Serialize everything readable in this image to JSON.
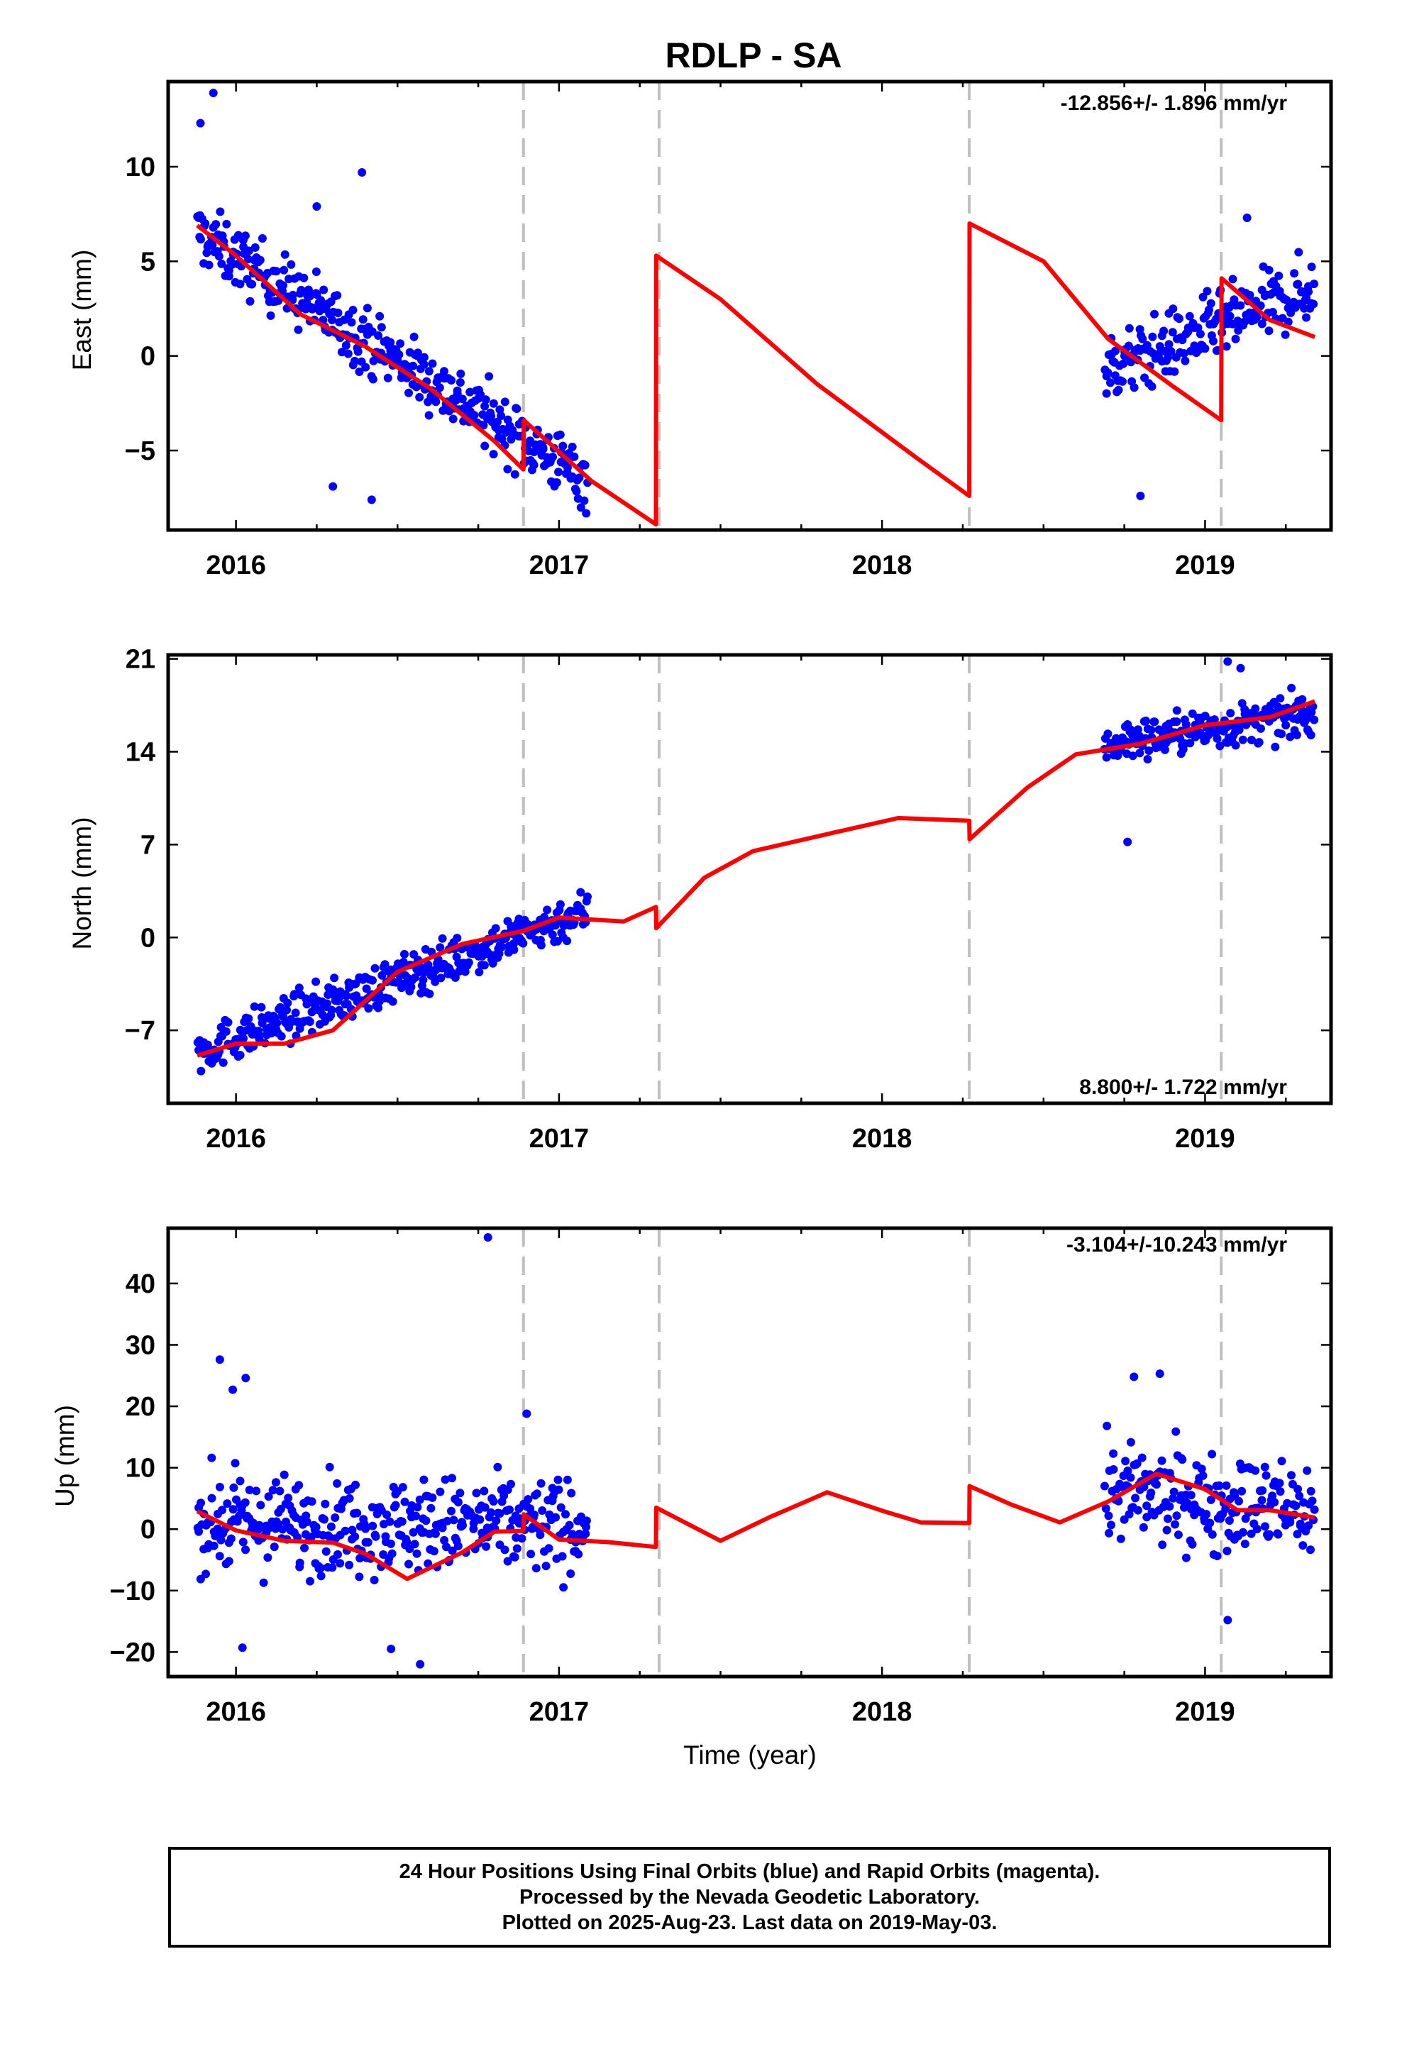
{
  "title": "RDLP - SA",
  "x_axis_title": "Time (year)",
  "footer": {
    "line1": "24 Hour Positions Using Final Orbits (blue) and Rapid Orbits (magenta).",
    "line2": "Processed by the Nevada Geodetic Laboratory.",
    "line3": "Plotted on 2025-Aug-23. Last data on 2019-May-03."
  },
  "colors": {
    "points": "#0000ff",
    "model": "#ff0000",
    "event_lines": "#bfbfbf"
  },
  "chart_data": [
    {
      "type": "scatter",
      "name": "east",
      "ylabel": "East (mm)",
      "rate_label": "-12.856+/- 1.896 mm/yr",
      "xlim": [
        2015.79,
        2019.39
      ],
      "ylim": [
        -9.2,
        14.5
      ],
      "yticks": [
        -5,
        0,
        5,
        10
      ],
      "xticks": [
        2016,
        2017,
        2018,
        2019
      ],
      "xtick_labels": [
        "2016",
        "2017",
        "2018",
        "2019"
      ],
      "event_lines": [
        2016.89,
        2017.31,
        2018.27,
        2019.05
      ],
      "data_ranges": [
        {
          "start": 2015.88,
          "end": 2017.09,
          "mean_start": 6.5,
          "mean_end": -6.6,
          "spread": 1.4
        },
        {
          "start": 2018.69,
          "end": 2019.34,
          "mean_start": -0.8,
          "mean_end": 3.6,
          "spread": 1.5
        }
      ],
      "outliers": [
        {
          "x": 2015.89,
          "y": 12.3
        },
        {
          "x": 2015.93,
          "y": 13.9
        },
        {
          "x": 2016.25,
          "y": 7.9
        },
        {
          "x": 2016.39,
          "y": 9.7
        },
        {
          "x": 2016.3,
          "y": -6.9
        },
        {
          "x": 2016.42,
          "y": -7.6
        },
        {
          "x": 2018.8,
          "y": -7.4
        },
        {
          "x": 2019.13,
          "y": 7.3
        }
      ],
      "model": [
        [
          2015.88,
          6.9
        ],
        [
          2016.0,
          5.3
        ],
        [
          2016.2,
          2.2
        ],
        [
          2016.4,
          0.5
        ],
        [
          2016.6,
          -1.7
        ],
        [
          2016.8,
          -4.5
        ],
        [
          2016.89,
          -6.0
        ],
        [
          2016.891,
          -3.4
        ],
        [
          2017.1,
          -6.6
        ],
        [
          2017.3,
          -8.9
        ],
        [
          2017.301,
          5.3
        ],
        [
          2017.5,
          3.0
        ],
        [
          2017.8,
          -1.5
        ],
        [
          2018.1,
          -5.3
        ],
        [
          2018.27,
          -7.4
        ],
        [
          2018.271,
          7.0
        ],
        [
          2018.5,
          5.0
        ],
        [
          2018.7,
          0.9
        ],
        [
          2018.9,
          -1.6
        ],
        [
          2019.05,
          -3.4
        ],
        [
          2019.051,
          4.1
        ],
        [
          2019.2,
          1.9
        ],
        [
          2019.34,
          1.0
        ]
      ]
    },
    {
      "type": "scatter",
      "name": "north",
      "ylabel": "North (mm)",
      "rate_label": "8.800+/- 1.722 mm/yr",
      "xlim": [
        2015.79,
        2019.39
      ],
      "ylim": [
        -12.5,
        21.3
      ],
      "yticks": [
        -7,
        0,
        7,
        14,
        21
      ],
      "xticks": [
        2016,
        2017,
        2018,
        2019
      ],
      "xtick_labels": [
        "2016",
        "2017",
        "2018",
        "2019"
      ],
      "event_lines": [
        2016.89,
        2017.31,
        2018.27,
        2019.05
      ],
      "data_ranges": [
        {
          "start": 2015.88,
          "end": 2017.09,
          "mean_start": -8.6,
          "mean_end": 2.0,
          "spread": 1.4
        },
        {
          "start": 2018.69,
          "end": 2019.34,
          "mean_start": 14.6,
          "mean_end": 16.8,
          "spread": 1.3
        }
      ],
      "outliers": [
        {
          "x": 2018.76,
          "y": 7.2
        },
        {
          "x": 2019.07,
          "y": 20.8
        },
        {
          "x": 2019.11,
          "y": 20.3
        }
      ],
      "model": [
        [
          2015.88,
          -8.9
        ],
        [
          2016.0,
          -8.0
        ],
        [
          2016.15,
          -8.0
        ],
        [
          2016.3,
          -7.0
        ],
        [
          2016.5,
          -2.6
        ],
        [
          2016.7,
          -0.5
        ],
        [
          2016.89,
          0.5
        ],
        [
          2017.0,
          1.5
        ],
        [
          2017.2,
          1.2
        ],
        [
          2017.3,
          2.3
        ],
        [
          2017.301,
          0.7
        ],
        [
          2017.45,
          4.5
        ],
        [
          2017.6,
          6.5
        ],
        [
          2017.85,
          7.9
        ],
        [
          2018.05,
          9.0
        ],
        [
          2018.27,
          8.8
        ],
        [
          2018.271,
          7.4
        ],
        [
          2018.45,
          11.3
        ],
        [
          2018.6,
          13.8
        ],
        [
          2018.8,
          14.6
        ],
        [
          2019.0,
          16.0
        ],
        [
          2019.2,
          16.6
        ],
        [
          2019.34,
          17.8
        ]
      ]
    },
    {
      "type": "scatter",
      "name": "up",
      "ylabel": "Up (mm)",
      "rate_label": "-3.104+/-10.243 mm/yr",
      "xlim": [
        2015.79,
        2019.39
      ],
      "ylim": [
        -24,
        49
      ],
      "yticks": [
        -20,
        -10,
        0,
        10,
        20,
        30,
        40
      ],
      "xticks": [
        2016,
        2017,
        2018,
        2019
      ],
      "xtick_labels": [
        "2016",
        "2017",
        "2018",
        "2019"
      ],
      "event_lines": [
        2016.89,
        2017.31,
        2018.27,
        2019.05
      ],
      "data_ranges": [
        {
          "start": 2015.88,
          "end": 2017.09,
          "mean_start": 1.0,
          "mean_end": 0.5,
          "spread": 6.5
        },
        {
          "start": 2018.69,
          "end": 2019.34,
          "mean_start": 6.0,
          "mean_end": 3.0,
          "spread": 6.5
        }
      ],
      "outliers": [
        {
          "x": 2016.78,
          "y": 47.5
        },
        {
          "x": 2015.95,
          "y": 27.6
        },
        {
          "x": 2015.99,
          "y": 22.7
        },
        {
          "x": 2016.03,
          "y": 24.6
        },
        {
          "x": 2016.9,
          "y": 18.8
        },
        {
          "x": 2018.86,
          "y": 25.3
        },
        {
          "x": 2018.78,
          "y": 24.8
        },
        {
          "x": 2016.57,
          "y": -22.0
        },
        {
          "x": 2016.48,
          "y": -19.5
        },
        {
          "x": 2019.07,
          "y": -14.8
        },
        {
          "x": 2016.02,
          "y": -19.3
        }
      ],
      "model": [
        [
          2015.88,
          2.9
        ],
        [
          2016.0,
          -0.2
        ],
        [
          2016.15,
          -1.9
        ],
        [
          2016.3,
          -2.2
        ],
        [
          2016.4,
          -4.0
        ],
        [
          2016.53,
          -8.1
        ],
        [
          2016.7,
          -3.8
        ],
        [
          2016.8,
          -0.4
        ],
        [
          2016.89,
          -0.3
        ],
        [
          2016.891,
          2.4
        ],
        [
          2017.0,
          -1.7
        ],
        [
          2017.15,
          -2.1
        ],
        [
          2017.3,
          -2.9
        ],
        [
          2017.301,
          3.5
        ],
        [
          2017.5,
          -1.9
        ],
        [
          2017.65,
          1.9
        ],
        [
          2017.83,
          6.0
        ],
        [
          2018.0,
          3.0
        ],
        [
          2018.12,
          1.1
        ],
        [
          2018.27,
          1.0
        ],
        [
          2018.271,
          7.0
        ],
        [
          2018.4,
          4.0
        ],
        [
          2018.55,
          1.1
        ],
        [
          2018.7,
          4.5
        ],
        [
          2018.85,
          9.0
        ],
        [
          2019.0,
          6.5
        ],
        [
          2019.1,
          3.1
        ],
        [
          2019.2,
          3.1
        ],
        [
          2019.34,
          1.9
        ]
      ]
    }
  ]
}
